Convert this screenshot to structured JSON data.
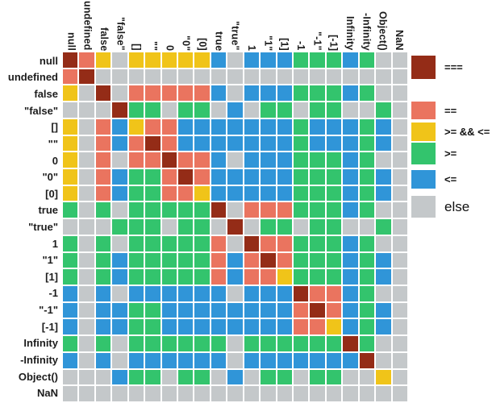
{
  "chart_data": {
    "type": "heatmap",
    "title": "",
    "xlabel": "",
    "ylabel": "",
    "grid": false,
    "legend_position": "right",
    "x_categories": [
      "null",
      "undefined",
      "false",
      "\"false\"",
      "[]",
      "\"\"",
      "0",
      "\"0\"",
      "[0]",
      "true",
      "\"true\"",
      "1",
      "\"1\"",
      "[1]",
      "-1",
      "\"-1\"",
      "[-1]",
      "Infinity",
      "-Infinity",
      "Object()",
      "NaN"
    ],
    "y_categories": [
      "null",
      "undefined",
      "false",
      "\"false\"",
      "[]",
      "\"\"",
      "0",
      "\"0\"",
      "[0]",
      "true",
      "\"true\"",
      "1",
      "\"1\"",
      "[1]",
      "-1",
      "\"-1\"",
      "[-1]",
      "Infinity",
      "-Infinity",
      "Object()",
      "NaN"
    ],
    "color_map": {
      "D": "#942c17",
      "S": "#ea745f",
      "Y": "#f0c419",
      "G": "#33c46d",
      "B": "#3095d8",
      "X": "#c4c8ca"
    },
    "legend": [
      {
        "code": "D",
        "name": "strict-equal",
        "label": "==="
      },
      {
        "code": "S",
        "name": "loose-equal",
        "label": "=="
      },
      {
        "code": "Y",
        "name": "gte-and-lte",
        "label": ">= && <="
      },
      {
        "code": "G",
        "name": "gte",
        "label": ">="
      },
      {
        "code": "B",
        "name": "lte",
        "label": "<="
      },
      {
        "code": "X",
        "name": "else",
        "label": "else"
      }
    ],
    "matrix": [
      "DSYXYYYYYBXBBBGGGBGXX",
      "SDXXXXXXXXXXXXXXXXXXX",
      "YXDXSSSSSBXBBBGGGBGXX",
      "XXXDGGXGGXBXGGXGGXXGX",
      "YXSBYSSBBBBBBBGBBBGBX",
      "YXSBSDSBBBBBBBGBBBGBX",
      "YXSXSSDSSBXBBBGGGBGXX",
      "YXSBGGSDSBBBBBGGGBGBX",
      "YXSBGGSSYBBBBBGGGBGBX",
      "GXGXGGGGGDXSSSGGGBGXX",
      "XXXGGGXGGXDXGGXGGXXGX",
      "GXGXGGGGGSXDSSGGGBGXX",
      "GXGBGGGGGSBSDSGGGBGBX",
      "GXGBGGGGGSBSSYGGGBGBX",
      "BXBXBBBBBBXBBBDSSBGXX",
      "BXBBGGBBBBBBBBSDSBGBX",
      "BXBBGGBBBBBBBBSSYBGBX",
      "GXGXGGGGGGXGGGGGGDGXX",
      "BXBXBBBBBBXBBBBBBBDXX",
      "XXXBGGXGGXBXGGXGGXXYX",
      "XXXXXXXXXXXXXXXXXXXXX"
    ]
  }
}
